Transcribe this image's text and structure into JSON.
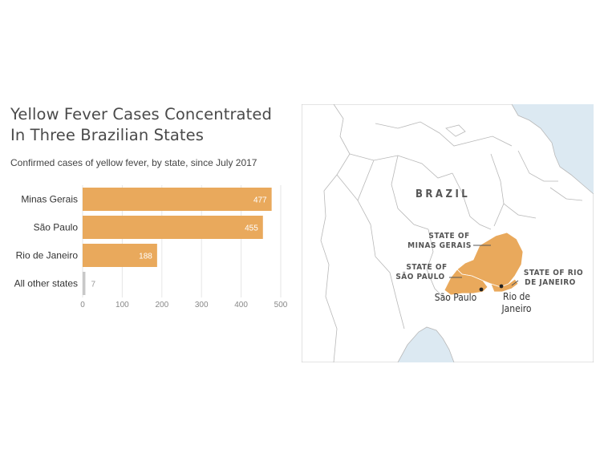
{
  "chart_data": {
    "type": "bar",
    "orientation": "horizontal",
    "title_lines": [
      "Yellow Fever Cases Concentrated",
      "In Three Brazilian States"
    ],
    "subtitle": "Confirmed cases of yellow fever, by state, since July 2017",
    "categories": [
      "Minas Gerais",
      "São Paulo",
      "Rio de Janeiro",
      "All other states"
    ],
    "values": [
      477,
      455,
      188,
      7
    ],
    "data_labels": [
      "477",
      "455",
      "188",
      "7"
    ],
    "bar_colors": [
      "#e9a95c",
      "#e9a95c",
      "#e9a95c",
      "#c8c8c8"
    ],
    "xlim": [
      0,
      500
    ],
    "x_ticks": [
      "0",
      "100",
      "200",
      "300",
      "400",
      "500"
    ],
    "x_tick_values": [
      0,
      100,
      200,
      300,
      400,
      500
    ],
    "grid": true
  },
  "map": {
    "country_label": "BRAZIL",
    "state_labels": {
      "minas_gerais": [
        "STATE OF",
        "MINAS GERAIS"
      ],
      "sao_paulo": [
        "STATE OF",
        "SÃO PAULO"
      ],
      "rio_de_janeiro": [
        "STATE OF RIO",
        "DE JANEIRO"
      ]
    },
    "city_labels": {
      "sao_paulo": "São Paulo",
      "rio_de_janeiro": [
        "Rio de",
        "Janeiro"
      ]
    },
    "colors": {
      "ocean": "#dce9f2",
      "land": "#ffffff",
      "highlight": "#e9a95c",
      "border": "#b8b8b8"
    }
  }
}
